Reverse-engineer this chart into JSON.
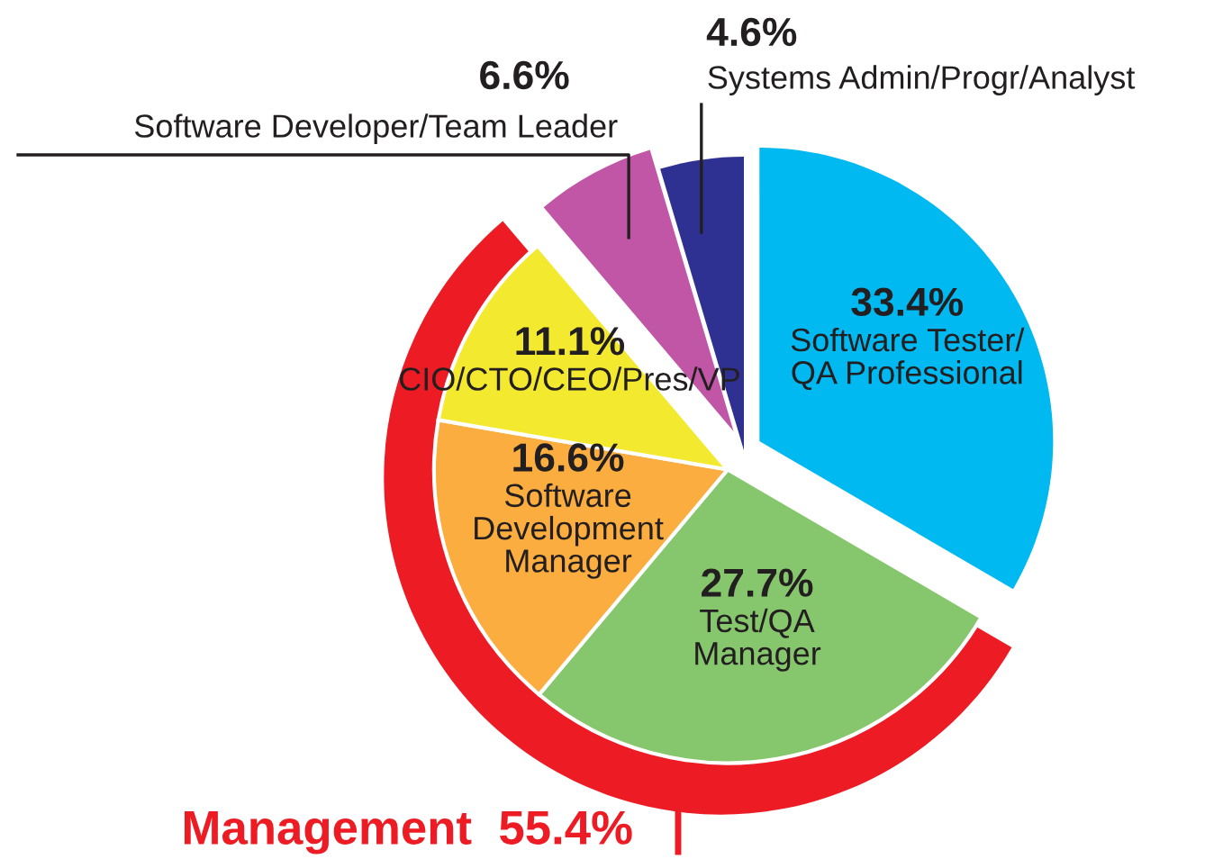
{
  "chart_data": {
    "type": "pie",
    "categories": [
      "Software Tester/\nQA Professional",
      "Test/QA\nManager",
      "Software\nDevelopment\nManager",
      "CIO/CTO/CEO/Pres/VP",
      "Software Developer/Team Leader",
      "Systems Admin/Progr/Analyst"
    ],
    "values": [
      33.4,
      27.7,
      16.6,
      11.1,
      6.6,
      4.6
    ],
    "colors": [
      "#00b9f1",
      "#86c66c",
      "#fbad3f",
      "#f3e92f",
      "#c156a6",
      "#2e3192"
    ],
    "value_labels": [
      "33.4%",
      "27.7%",
      "16.6%",
      "11.1%",
      "6.6%",
      "4.6%"
    ],
    "annotations": [
      "Management  55.4%"
    ]
  }
}
